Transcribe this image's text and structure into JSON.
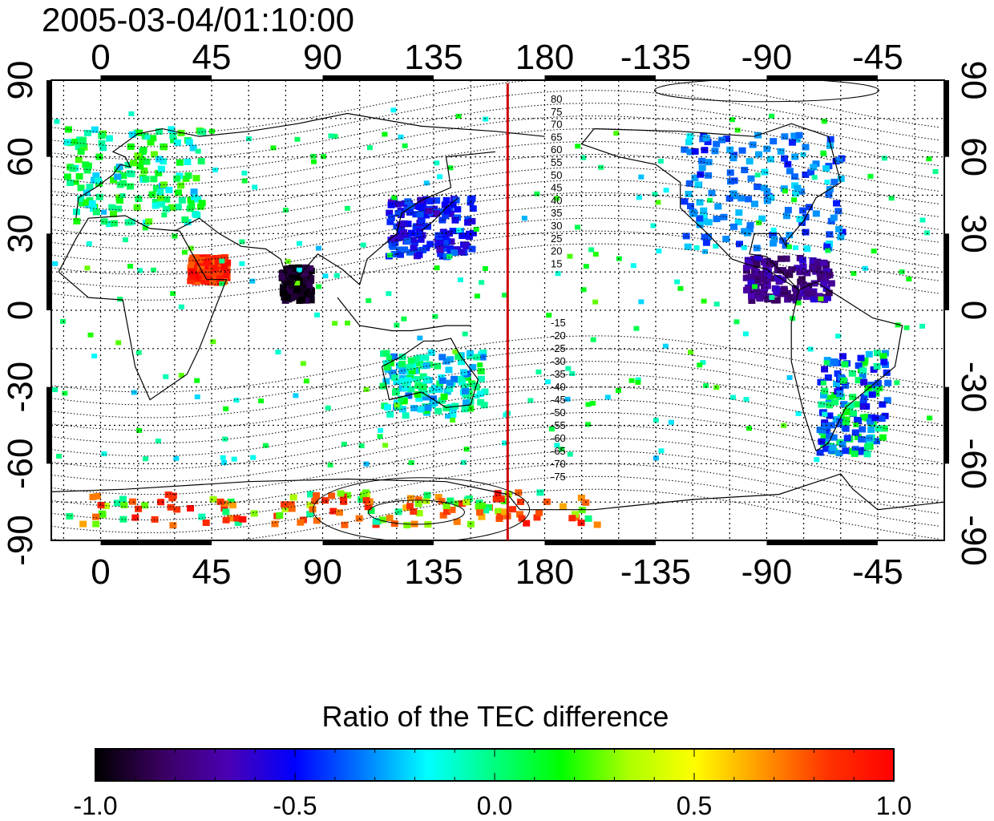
{
  "title": "2005-03-04/01:10:00",
  "map": {
    "lon_range": [
      -20,
      342
    ],
    "lat_range": [
      -90,
      90
    ],
    "lon_ticks": [
      {
        "value": 0,
        "label": "0"
      },
      {
        "value": 45,
        "label": "45"
      },
      {
        "value": 90,
        "label": "90"
      },
      {
        "value": 135,
        "label": "135"
      },
      {
        "value": 180,
        "label": "180"
      },
      {
        "value": 225,
        "label": "-135"
      },
      {
        "value": 270,
        "label": "-90"
      },
      {
        "value": 315,
        "label": "-45"
      }
    ],
    "lat_ticks": [
      {
        "value": 90,
        "label": "90"
      },
      {
        "value": 60,
        "label": "60"
      },
      {
        "value": 30,
        "label": "30"
      },
      {
        "value": 0,
        "label": "0"
      },
      {
        "value": -30,
        "label": "-30"
      },
      {
        "value": -60,
        "label": "-60"
      },
      {
        "value": -90,
        "label": "-90"
      }
    ],
    "grid": "dotted every 15 degrees",
    "meridian_line": {
      "lon": 165,
      "color": "#cc0000"
    },
    "magnetic_latitude_labels_north": [
      "80",
      "75",
      "70",
      "65",
      "60",
      "55",
      "50",
      "45",
      "40",
      "35",
      "30",
      "25",
      "20",
      "15"
    ],
    "magnetic_latitude_labels_south": [
      "-15",
      "-20",
      "-25",
      "-30",
      "-35",
      "-40",
      "-45",
      "-50",
      "-55",
      "-60",
      "-65",
      "-70",
      "-75"
    ]
  },
  "colorbar": {
    "title": "Ratio of the TEC difference",
    "range": [
      -1.0,
      1.0
    ],
    "tick_labels": [
      "-1.0",
      "-0.5",
      "0.0",
      "0.5",
      "1.0"
    ],
    "colors": [
      "#000000",
      "#3a0060",
      "#4b00b4",
      "#0000ff",
      "#0078ff",
      "#00ffff",
      "#00ff7f",
      "#00ff00",
      "#aaff00",
      "#ffff00",
      "#ff9900",
      "#ff3300",
      "#ff0000"
    ]
  },
  "tec_regions": [
    {
      "name": "europe",
      "lon": [
        -15,
        40
      ],
      "lat": [
        35,
        72
      ],
      "values": [
        0.0,
        0.1,
        -0.1,
        0.2,
        -0.2,
        0.0,
        0.1
      ]
    },
    {
      "name": "east-asia",
      "lon": [
        115,
        150
      ],
      "lat": [
        22,
        45
      ],
      "values": [
        -0.5,
        -0.55,
        -0.45,
        -0.6,
        -0.4
      ]
    },
    {
      "name": "north-america",
      "lon": [
        235,
        300
      ],
      "lat": [
        25,
        70
      ],
      "values": [
        -0.3,
        -0.35,
        -0.25,
        -0.4,
        -0.3,
        -0.45
      ]
    },
    {
      "name": "central-america",
      "lon": [
        260,
        295
      ],
      "lat": [
        5,
        22
      ],
      "values": [
        -0.7,
        -0.75,
        -0.65,
        -0.8
      ]
    },
    {
      "name": "south-america",
      "lon": [
        290,
        318
      ],
      "lat": [
        -55,
        -15
      ],
      "values": [
        -0.5,
        -0.3,
        -0.4,
        0.0,
        0.1
      ]
    },
    {
      "name": "australia",
      "lon": [
        112,
        155
      ],
      "lat": [
        -40,
        -15
      ],
      "values": [
        -0.1,
        -0.2,
        0.0,
        -0.3,
        0.1
      ]
    },
    {
      "name": "antarctic-coast",
      "lon": [
        -15,
        200
      ],
      "lat": [
        -83,
        -70
      ],
      "values": [
        0.8,
        0.9,
        0.3,
        0.0,
        0.7
      ]
    },
    {
      "name": "red-sea",
      "lon": [
        35,
        50
      ],
      "lat": [
        12,
        22
      ],
      "values": [
        0.9,
        1.0,
        0.8
      ]
    },
    {
      "name": "india",
      "lon": [
        72,
        84
      ],
      "lat": [
        5,
        18
      ],
      "values": [
        -1.0,
        -0.95,
        -0.9
      ]
    },
    {
      "name": "scatter",
      "lon": [
        -20,
        340
      ],
      "lat": [
        -60,
        80
      ],
      "values": [
        0.0,
        -0.2,
        0.2,
        0.1,
        -0.1
      ]
    }
  ]
}
